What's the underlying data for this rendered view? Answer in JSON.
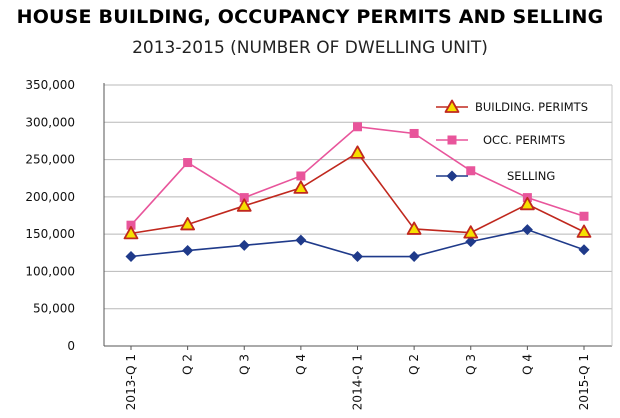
{
  "header": {
    "title": "HOUSE BUILDING, OCCUPANCY PERMITS AND SELLING",
    "subtitle": "2013-2015 (NUMBER OF DWELLING UNIT)"
  },
  "chart_data": {
    "type": "line",
    "title": "HOUSE BUILDING, OCCUPANCY PERMITS AND SELLING",
    "subtitle": "2013-2015 (NUMBER OF DWELLING UNIT)",
    "categories": [
      "2013-Q 1",
      "Q 2",
      "Q 3",
      "Q 4",
      "2014-Q 1",
      "Q 2",
      "Q 3",
      "Q 4",
      "2015-Q 1"
    ],
    "ylim": [
      0,
      350000
    ],
    "yticks": [
      0,
      50000,
      100000,
      150000,
      200000,
      250000,
      300000,
      350000
    ],
    "ytick_labels": [
      "0",
      "50,000",
      "100,000",
      "150,000",
      "200,000",
      "250,000",
      "300,000",
      "350,000"
    ],
    "grid": true,
    "legend_position": "top-right",
    "series": [
      {
        "name": "BUILDING. PERIMTS",
        "color": "#c0281e",
        "marker": "triangle",
        "marker_fill": "#f6e000",
        "values": [
          151000,
          163000,
          188000,
          212000,
          259000,
          157000,
          152000,
          190000,
          153000
        ]
      },
      {
        "name": "OCC. PERIMTS",
        "color": "#e8559b",
        "marker": "square",
        "marker_fill": "#e8559b",
        "values": [
          162000,
          246000,
          199000,
          228000,
          294000,
          285000,
          235000,
          199000,
          174000
        ]
      },
      {
        "name": "SELLING",
        "color": "#1f3a8a",
        "marker": "diamond",
        "marker_fill": "#1f3a8a",
        "values": [
          120000,
          128000,
          135000,
          142000,
          120000,
          120000,
          140000,
          156000,
          129000
        ]
      }
    ]
  }
}
